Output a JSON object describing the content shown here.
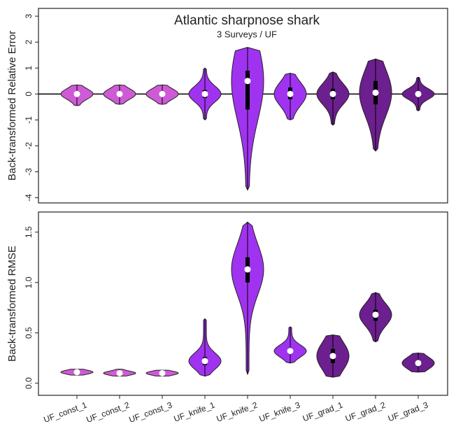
{
  "chart_data": [
    {
      "type": "violin",
      "title": "Atlantic sharpnose shark",
      "subtitle": "3 Surveys / UF",
      "ylabel": "Back-transformed Relative Error",
      "ylim": [
        -4.2,
        3.3
      ],
      "yticks": [
        -4,
        -3,
        -2,
        -1,
        0,
        1,
        2,
        3
      ],
      "hline": 0,
      "violins": [
        {
          "min": -0.45,
          "max": 0.35,
          "q1": -0.1,
          "median": 0,
          "q3": 0.1,
          "color": "#cf5ad6"
        },
        {
          "min": -0.4,
          "max": 0.35,
          "q1": -0.1,
          "median": 0,
          "q3": 0.1,
          "color": "#cf5ad6"
        },
        {
          "min": -0.4,
          "max": 0.35,
          "q1": -0.1,
          "median": 0,
          "q3": 0.1,
          "color": "#cf5ad6"
        },
        {
          "min": -1.0,
          "max": 1.0,
          "q1": -0.15,
          "median": 0,
          "q3": 0.15,
          "color": "#a033f0"
        },
        {
          "min": -3.7,
          "max": 1.8,
          "q1": -0.6,
          "median": 0.5,
          "q3": 0.9,
          "color": "#a033f0"
        },
        {
          "min": -1.0,
          "max": 0.8,
          "q1": -0.2,
          "median": 0,
          "q3": 0.25,
          "color": "#a033f0"
        },
        {
          "min": -1.2,
          "max": 0.85,
          "q1": -0.2,
          "median": 0,
          "q3": 0.2,
          "color": "#6c1f8e"
        },
        {
          "min": -2.2,
          "max": 1.35,
          "q1": -0.4,
          "median": 0.05,
          "q3": 0.5,
          "color": "#6c1f8e"
        },
        {
          "min": -0.65,
          "max": 0.65,
          "q1": -0.1,
          "median": 0,
          "q3": 0.1,
          "color": "#6c1f8e"
        }
      ]
    },
    {
      "type": "violin",
      "ylabel": "Back-transformed RMSE",
      "ylim": [
        -0.12,
        1.7
      ],
      "yticks": [
        {
          "value": 0,
          "label": "0.0"
        },
        0.5,
        {
          "value": 1,
          "label": "1.0"
        },
        1.5
      ],
      "categories": [
        "UF_const_1",
        "UF_const_2",
        "UF_const_3",
        "UF_knife_1",
        "UF_knife_2",
        "UF_knife_3",
        "UF_grad_1",
        "UF_grad_2",
        "UF_grad_3"
      ],
      "violins": [
        {
          "min": 0.08,
          "max": 0.14,
          "q1": 0.1,
          "median": 0.11,
          "q3": 0.12,
          "color": "#cf5ad6"
        },
        {
          "min": 0.07,
          "max": 0.14,
          "q1": 0.09,
          "median": 0.1,
          "q3": 0.11,
          "color": "#cf5ad6"
        },
        {
          "min": 0.07,
          "max": 0.13,
          "q1": 0.09,
          "median": 0.1,
          "q3": 0.11,
          "color": "#cf5ad6"
        },
        {
          "min": 0.07,
          "max": 0.64,
          "q1": 0.18,
          "median": 0.22,
          "q3": 0.26,
          "color": "#a033f0"
        },
        {
          "min": 0.09,
          "max": 1.6,
          "q1": 1.0,
          "median": 1.13,
          "q3": 1.25,
          "color": "#a033f0"
        },
        {
          "min": 0.2,
          "max": 0.56,
          "q1": 0.29,
          "median": 0.32,
          "q3": 0.35,
          "color": "#a033f0"
        },
        {
          "min": 0.06,
          "max": 0.48,
          "q1": 0.2,
          "median": 0.27,
          "q3": 0.34,
          "color": "#6c1f8e"
        },
        {
          "min": 0.41,
          "max": 0.9,
          "q1": 0.62,
          "median": 0.68,
          "q3": 0.73,
          "color": "#6c1f8e"
        },
        {
          "min": 0.11,
          "max": 0.3,
          "q1": 0.17,
          "median": 0.2,
          "q3": 0.23,
          "color": "#6c1f8e"
        }
      ]
    }
  ]
}
